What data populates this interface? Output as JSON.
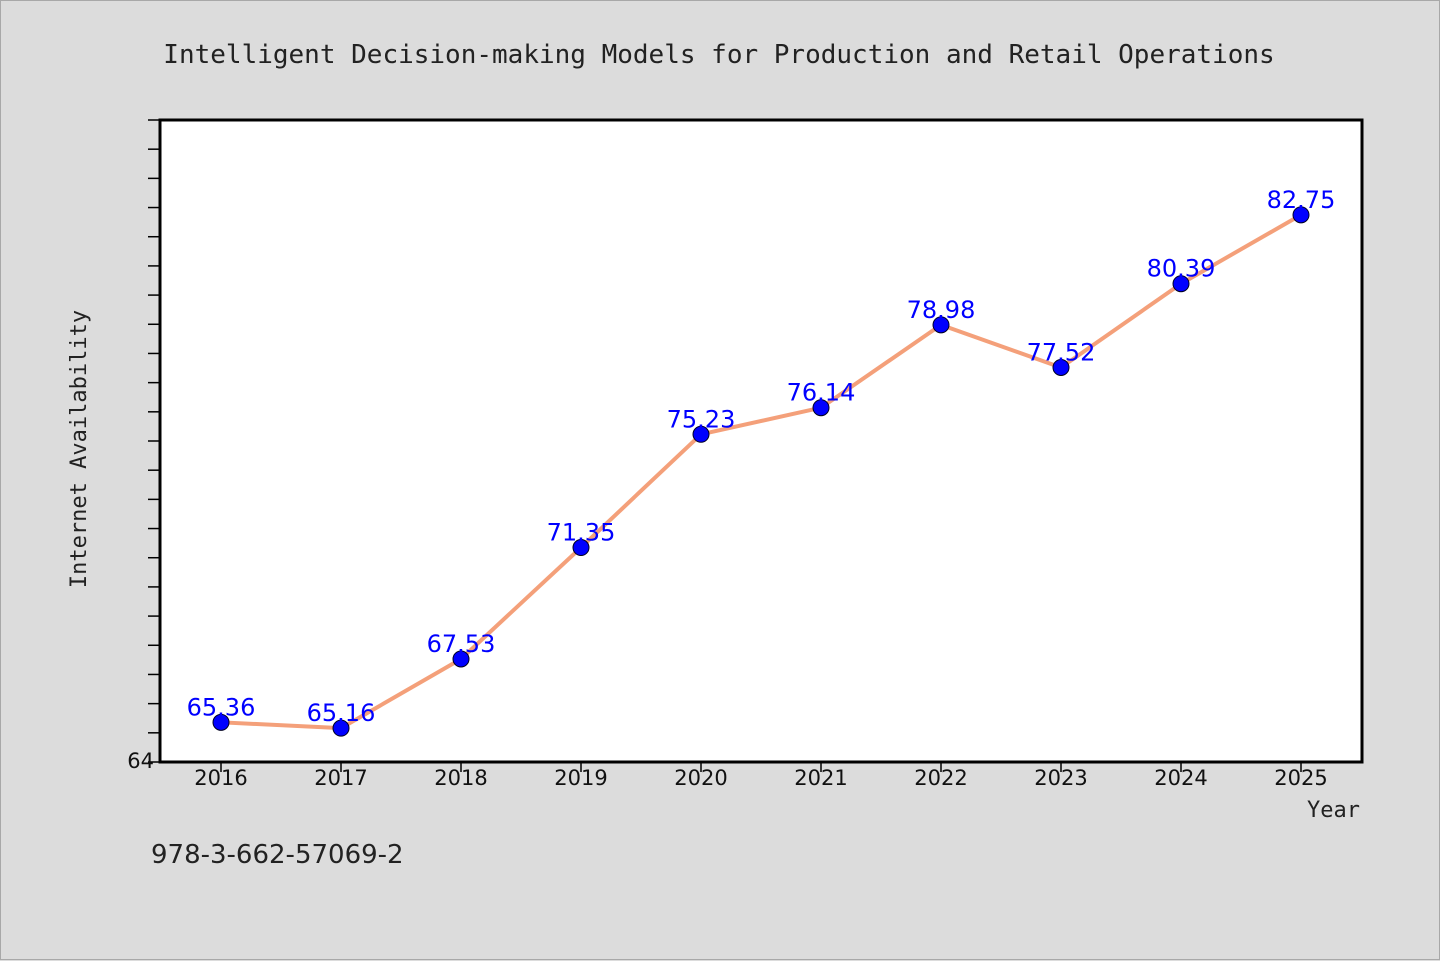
{
  "chart_data": {
    "type": "line",
    "title": "Intelligent Decision-making Models for Production and Retail Operations",
    "xlabel": "Year",
    "ylabel": "Internet Availability",
    "categories": [
      "2016",
      "2017",
      "2018",
      "2019",
      "2020",
      "2021",
      "2022",
      "2023",
      "2024",
      "2025"
    ],
    "series": [
      {
        "values": [
          65.36,
          65.16,
          67.53,
          71.35,
          75.23,
          76.14,
          78.98,
          77.52,
          80.39,
          82.75
        ],
        "labels": [
          "65.36",
          "65.16",
          "67.53",
          "71.35",
          "75.23",
          "76.14",
          "78.98",
          "77.52",
          "80.39",
          "82.75"
        ]
      }
    ],
    "ylim": [
      64,
      86
    ],
    "y_tick_labels": [
      "64"
    ],
    "grid": false,
    "legend": "none",
    "colors": {
      "line": "#f4a07a",
      "marker": "#0000ff",
      "data_label": "#0000ff",
      "plot_background": "#ffffff",
      "page_background": "#dcdcdc"
    }
  },
  "footer": {
    "isbn": "978-3-662-57069-2"
  }
}
